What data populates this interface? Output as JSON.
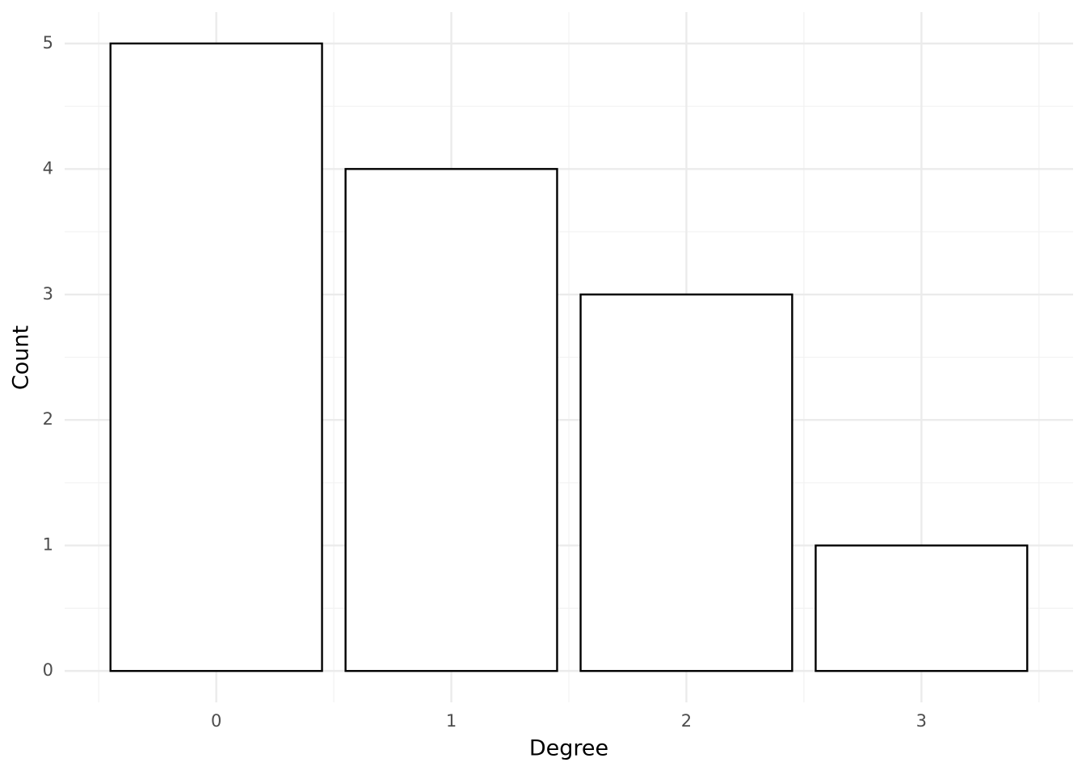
{
  "chart_data": {
    "type": "bar",
    "x_label": "Degree",
    "y_label": "Count",
    "x": [
      0,
      1,
      2,
      3
    ],
    "values": [
      5,
      4,
      3,
      1
    ],
    "color": "#ffffff",
    "edge_color": "#000000",
    "xlim": [
      -0.645,
      3.645
    ],
    "xticks": [
      0,
      1,
      2,
      3
    ],
    "ylim": [
      -0.25,
      5.25
    ],
    "yticks": [
      0,
      1,
      2,
      3,
      4,
      5
    ],
    "grid": true
  }
}
